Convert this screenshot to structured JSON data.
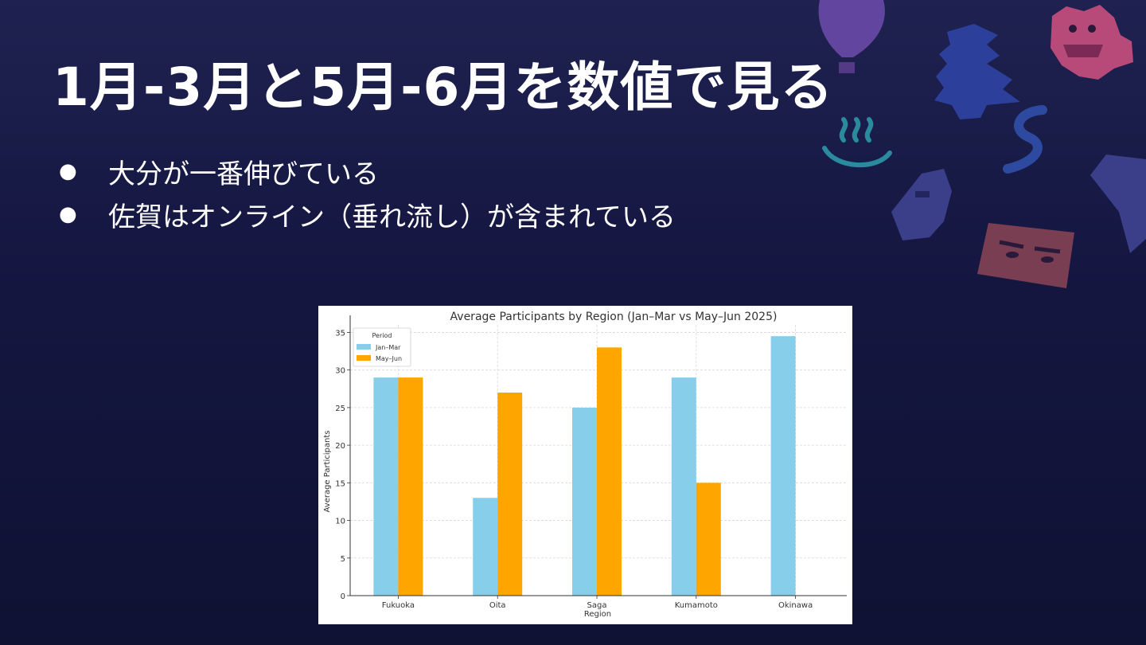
{
  "slide": {
    "title": "1月-3月と5月-6月を数値で見る",
    "bullets": [
      "大分が一番伸びている",
      "佐賀はオンライン（垂れ流し）が含まれている"
    ],
    "bullet_marker": "●"
  },
  "decor_icons": [
    "hot-air-balloon-icon",
    "lion-mask-icon",
    "castle-icon",
    "hot-spring-icon",
    "dragon-icon",
    "moai-icon",
    "yacht-icon",
    "face-mask-icon"
  ],
  "colors": {
    "jan_mar": "#87ceeb",
    "may_jun": "#ffa500"
  },
  "chart_data": {
    "type": "bar",
    "title": "Average Participants by Region (Jan–Mar vs May–Jun 2025)",
    "xlabel": "Region",
    "ylabel": "Average Participants",
    "categories": [
      "Fukuoka",
      "Oita",
      "Saga",
      "Kumamoto",
      "Okinawa"
    ],
    "series": [
      {
        "name": "Jan–Mar",
        "values": [
          29,
          13,
          25,
          29,
          34.5
        ]
      },
      {
        "name": "May–Jun",
        "values": [
          29,
          27,
          33,
          15,
          null
        ]
      }
    ],
    "ylim": [
      0,
      36
    ],
    "yticks": [
      0,
      5,
      10,
      15,
      20,
      25,
      30,
      35
    ],
    "legend_title": "Period",
    "legend_position": "top-left",
    "grid": true
  }
}
